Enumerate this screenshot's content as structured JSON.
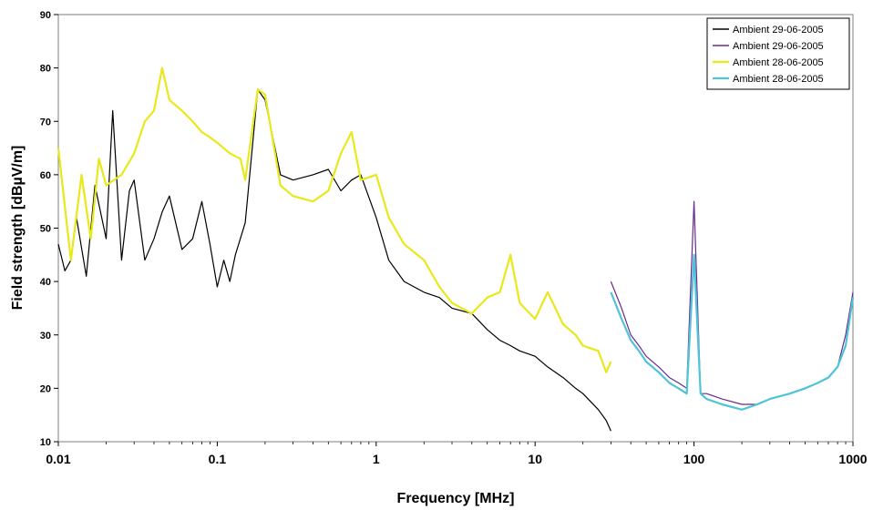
{
  "chart_data": {
    "type": "line",
    "title": "",
    "xlabel": "Frequency [MHz]",
    "ylabel": "Field strength [dBµV/m]",
    "x_scale": "log",
    "xlim": [
      0.01,
      1000
    ],
    "ylim": [
      10,
      90
    ],
    "x_ticks": [
      0.01,
      0.1,
      1,
      10,
      100,
      1000
    ],
    "x_tick_labels": [
      "0.01",
      "0.1",
      "1",
      "10",
      "100",
      "1000"
    ],
    "y_ticks": [
      10,
      20,
      30,
      40,
      50,
      60,
      70,
      80,
      90
    ],
    "y_tick_labels": [
      "10",
      "20",
      "30",
      "40",
      "50",
      "60",
      "70",
      "80",
      "90"
    ],
    "grid": false,
    "legend_position": "top-right",
    "series": [
      {
        "name": "Ambient 29-06-2005",
        "color": "#000000",
        "x": [
          0.01,
          0.011,
          0.012,
          0.013,
          0.015,
          0.017,
          0.02,
          0.022,
          0.025,
          0.028,
          0.03,
          0.035,
          0.04,
          0.045,
          0.05,
          0.06,
          0.07,
          0.08,
          0.09,
          0.1,
          0.11,
          0.12,
          0.13,
          0.15,
          0.18,
          0.2,
          0.25,
          0.3,
          0.4,
          0.5,
          0.6,
          0.7,
          0.8,
          1.0,
          1.2,
          1.5,
          2.0,
          2.5,
          3.0,
          4.0,
          5.0,
          6.0,
          7.0,
          8.0,
          10,
          12,
          15,
          18,
          20,
          25,
          28,
          30
        ],
        "values": [
          47,
          42,
          44,
          52,
          41,
          58,
          48,
          72,
          44,
          57,
          59,
          44,
          48,
          53,
          56,
          46,
          48,
          55,
          47,
          39,
          44,
          40,
          45,
          51,
          76,
          74,
          60,
          59,
          60,
          61,
          57,
          59,
          60,
          52,
          44,
          40,
          38,
          37,
          35,
          34,
          31,
          29,
          28,
          27,
          26,
          24,
          22,
          20,
          19,
          16,
          14,
          12
        ]
      },
      {
        "name": "Ambient 29-06-2005",
        "color": "#6a2a8c",
        "x": [
          30,
          35,
          40,
          45,
          50,
          60,
          70,
          80,
          90,
          100,
          110,
          120,
          150,
          200,
          250,
          300,
          400,
          500,
          600,
          700,
          800,
          900,
          1000
        ],
        "values": [
          40,
          35,
          30,
          28,
          26,
          24,
          22,
          21,
          20,
          55,
          19,
          19,
          18,
          17,
          17,
          18,
          19,
          20,
          21,
          22,
          24,
          30,
          38
        ]
      },
      {
        "name": "Ambient 28-06-2005",
        "color": "#e8e81a",
        "x": [
          0.01,
          0.012,
          0.014,
          0.016,
          0.018,
          0.02,
          0.025,
          0.03,
          0.035,
          0.04,
          0.045,
          0.05,
          0.06,
          0.07,
          0.08,
          0.09,
          0.1,
          0.12,
          0.14,
          0.15,
          0.18,
          0.2,
          0.25,
          0.3,
          0.4,
          0.5,
          0.6,
          0.7,
          0.8,
          1.0,
          1.2,
          1.5,
          2.0,
          2.5,
          3.0,
          4.0,
          5.0,
          6.0,
          7.0,
          8.0,
          10,
          12,
          15,
          18,
          20,
          25,
          28,
          30
        ],
        "values": [
          65,
          44,
          60,
          48,
          63,
          58,
          60,
          64,
          70,
          72,
          80,
          74,
          72,
          70,
          68,
          67,
          66,
          64,
          63,
          59,
          76,
          75,
          58,
          56,
          55,
          57,
          64,
          68,
          59,
          60,
          52,
          47,
          44,
          39,
          36,
          34,
          37,
          38,
          45,
          36,
          33,
          38,
          32,
          30,
          28,
          27,
          23,
          25
        ]
      },
      {
        "name": "Ambient 28-06-2005",
        "color": "#4fc3d9",
        "x": [
          30,
          35,
          40,
          45,
          50,
          60,
          70,
          80,
          90,
          100,
          110,
          120,
          150,
          200,
          250,
          300,
          400,
          500,
          600,
          700,
          800,
          900,
          1000
        ],
        "values": [
          38,
          33,
          29,
          27,
          25,
          23,
          21,
          20,
          19,
          45,
          19,
          18,
          17,
          16,
          17,
          18,
          19,
          20,
          21,
          22,
          24,
          28,
          37
        ]
      }
    ]
  }
}
